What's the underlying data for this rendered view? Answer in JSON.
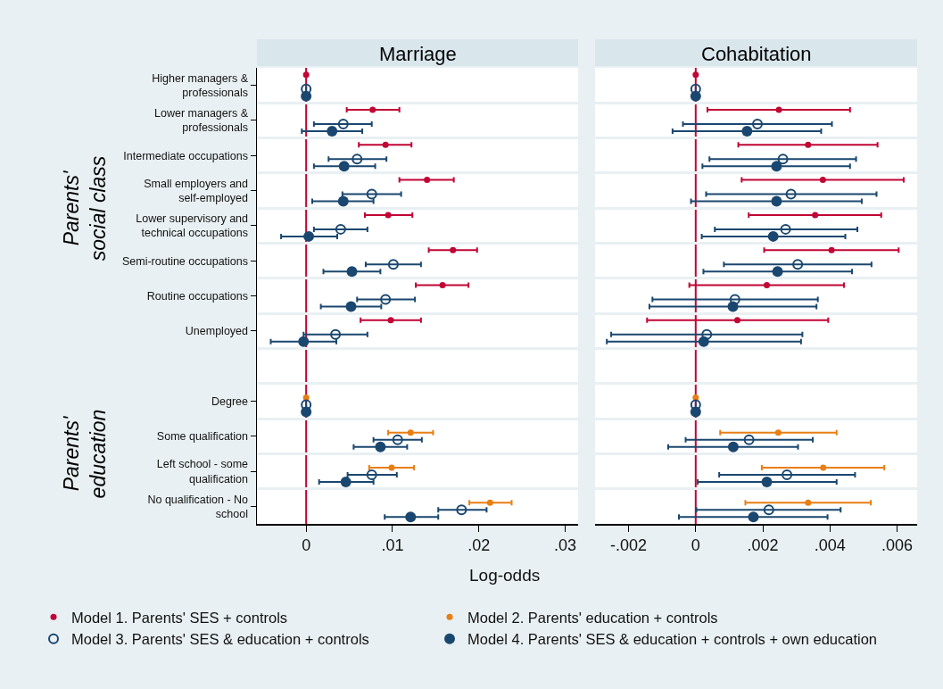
{
  "chart_data": [
    {
      "type": "scatter",
      "title": "Marriage",
      "orientation": "horizontal",
      "marker": "circle",
      "grid": "y",
      "legend": "bottom",
      "xlabel": "Log-odds",
      "annotations": [
        "Parents' social class",
        "Parents' education"
      ],
      "categories": [
        "Higher managers & professionals",
        "Lower managers & professionals",
        "Intermediate occupations",
        "Small employers and self-employed",
        "Lower supervisory and technical occupations",
        "Semi-routine occupations",
        "Routine occupations",
        "Unemployed",
        null,
        "Degree",
        "Some qualification",
        "Left school - some qualification",
        "No qualification - No school"
      ],
      "xlim": [
        -0.0057,
        0.0315
      ],
      "xticks": [
        0,
        {
          "value": 0.01,
          "label": ".01"
        },
        {
          "value": 0.02,
          "label": ".02"
        },
        {
          "value": 0.03,
          "label": ".03"
        }
      ],
      "ref_lines": [
        {
          "axis": "x",
          "value": 0,
          "color": "#c10534"
        }
      ],
      "series": [
        {
          "name": "Model 1. Parents' SES + controls",
          "color": "#c10534",
          "values": [
            0,
            0.0077,
            0.0092,
            0.014,
            0.0095,
            0.017,
            0.0158,
            0.0098,
            null,
            null,
            null,
            null,
            null
          ],
          "errors": [
            null,
            [
              0.0047,
              0.0108
            ],
            [
              0.0061,
              0.0122
            ],
            [
              0.0108,
              0.0171
            ],
            [
              0.0068,
              0.0123
            ],
            [
              0.0142,
              0.0198
            ],
            [
              0.0127,
              0.0188
            ],
            [
              0.0063,
              0.0133
            ],
            null,
            null,
            null,
            null,
            null
          ]
        },
        {
          "name": "Model 2. Parents' education + controls",
          "color": "#e97e13",
          "values": [
            null,
            null,
            null,
            null,
            null,
            null,
            null,
            null,
            null,
            0,
            0.0121,
            0.0099,
            0.0213
          ],
          "errors": [
            null,
            null,
            null,
            null,
            null,
            null,
            null,
            null,
            null,
            null,
            [
              0.0095,
              0.0147
            ],
            [
              0.0073,
              0.0125
            ],
            [
              0.0189,
              0.0238
            ]
          ]
        },
        {
          "name": "Model 3. Parents' SES & education + controls",
          "color": "#1a476f",
          "values": [
            0,
            0.0043,
            0.0059,
            0.0076,
            0.004,
            0.0101,
            0.0092,
            0.0034,
            null,
            0,
            0.0106,
            0.0076,
            0.018
          ],
          "errors": [
            null,
            [
              0.0009,
              0.0076
            ],
            [
              0.0026,
              0.0093
            ],
            [
              0.0042,
              0.011
            ],
            [
              0.0009,
              0.0071
            ],
            [
              0.0069,
              0.0133
            ],
            [
              0.0059,
              0.0126
            ],
            [
              -0.0003,
              0.0071
            ],
            null,
            null,
            [
              0.0078,
              0.0134
            ],
            [
              0.0048,
              0.0105
            ],
            [
              0.0153,
              0.0209
            ]
          ]
        },
        {
          "name": "Model 4. Parents' SES & education + controls + own education",
          "color": "#1a476f",
          "values": [
            0,
            0.003,
            0.0044,
            0.0043,
            0.0003,
            0.0053,
            0.0052,
            -0.0003,
            null,
            0,
            0.0086,
            0.0046,
            0.0121
          ],
          "errors": [
            null,
            [
              -0.0005,
              0.0065
            ],
            [
              0.0009,
              0.008
            ],
            [
              0.0007,
              0.0078
            ],
            [
              -0.0029,
              0.0036
            ],
            [
              0.002,
              0.0086
            ],
            [
              0.0017,
              0.0087
            ],
            [
              -0.0041,
              0.0035
            ],
            null,
            null,
            [
              0.0055,
              0.0117
            ],
            [
              0.0015,
              0.0078
            ],
            [
              0.0091,
              0.0153
            ]
          ]
        }
      ]
    },
    {
      "type": "scatter",
      "title": "Cohabitation",
      "orientation": "horizontal",
      "marker": "circle",
      "grid": "y",
      "tick_labels": "x",
      "categories": [
        null,
        null,
        null,
        null,
        null,
        null,
        null,
        null,
        null,
        null,
        null,
        null,
        null
      ],
      "xlim": [
        -0.003,
        0.0066
      ],
      "xticks": [
        {
          "value": -0.002,
          "label": "-.002"
        },
        0,
        {
          "value": 0.002,
          "label": ".002"
        },
        {
          "value": 0.004,
          "label": ".004"
        },
        {
          "value": 0.006,
          "label": ".006"
        }
      ],
      "ref_lines": [
        {
          "axis": "x",
          "value": 0,
          "color": "#c10534"
        }
      ],
      "series": [
        {
          "color": "#c10534",
          "values": [
            0,
            0.00248,
            0.00335,
            0.00379,
            0.00356,
            0.00405,
            0.00212,
            0.00124,
            null,
            null,
            null,
            null,
            null
          ],
          "errors": [
            null,
            [
              0.00035,
              0.0046
            ],
            [
              0.00127,
              0.00542
            ],
            [
              0.00137,
              0.0062
            ],
            [
              0.00158,
              0.00553
            ],
            [
              0.00204,
              0.00605
            ],
            [
              -0.00019,
              0.00442
            ],
            [
              -0.00145,
              0.00395
            ],
            null,
            null,
            null,
            null,
            null
          ]
        },
        {
          "color": "#e97e13",
          "values": [
            null,
            null,
            null,
            null,
            null,
            null,
            null,
            null,
            null,
            0,
            0.00246,
            0.0038,
            0.00335
          ],
          "errors": [
            null,
            null,
            null,
            null,
            null,
            null,
            null,
            null,
            null,
            null,
            [
              0.00073,
              0.0042
            ],
            [
              0.00197,
              0.00562
            ],
            [
              0.00148,
              0.00522
            ]
          ]
        },
        {
          "color": "#1a476f",
          "values": [
            0,
            0.00184,
            0.0026,
            0.00284,
            0.00268,
            0.00304,
            0.00117,
            0.00033,
            null,
            0,
            0.00159,
            0.00272,
            0.00218
          ],
          "errors": [
            null,
            [
              -0.00038,
              0.00406
            ],
            [
              0.00041,
              0.00478
            ],
            [
              0.00031,
              0.00539
            ],
            [
              0.00057,
              0.00482
            ],
            [
              0.00084,
              0.00524
            ],
            [
              -0.00129,
              0.00364
            ],
            [
              -0.00252,
              0.00318
            ],
            null,
            null,
            [
              -0.0003,
              0.00349
            ],
            [
              0.0007,
              0.00475
            ],
            [
              2e-05,
              0.00432
            ]
          ]
        },
        {
          "color": "#1a476f",
          "values": [
            0,
            0.00153,
            0.00241,
            0.00241,
            0.00231,
            0.00244,
            0.00111,
            0.00024,
            null,
            0,
            0.00112,
            0.00212,
            0.00172
          ],
          "errors": [
            null,
            [
              -0.00069,
              0.00374
            ],
            [
              0.0002,
              0.0046
            ],
            [
              -0.00014,
              0.00495
            ],
            [
              0.00018,
              0.00446
            ],
            [
              0.00023,
              0.00466
            ],
            [
              -0.00138,
              0.0036
            ],
            [
              -0.00265,
              0.00314
            ],
            null,
            null,
            [
              -0.00082,
              0.00305
            ],
            [
              6e-05,
              0.0042
            ],
            [
              -0.0005,
              0.00393
            ]
          ]
        }
      ]
    }
  ]
}
